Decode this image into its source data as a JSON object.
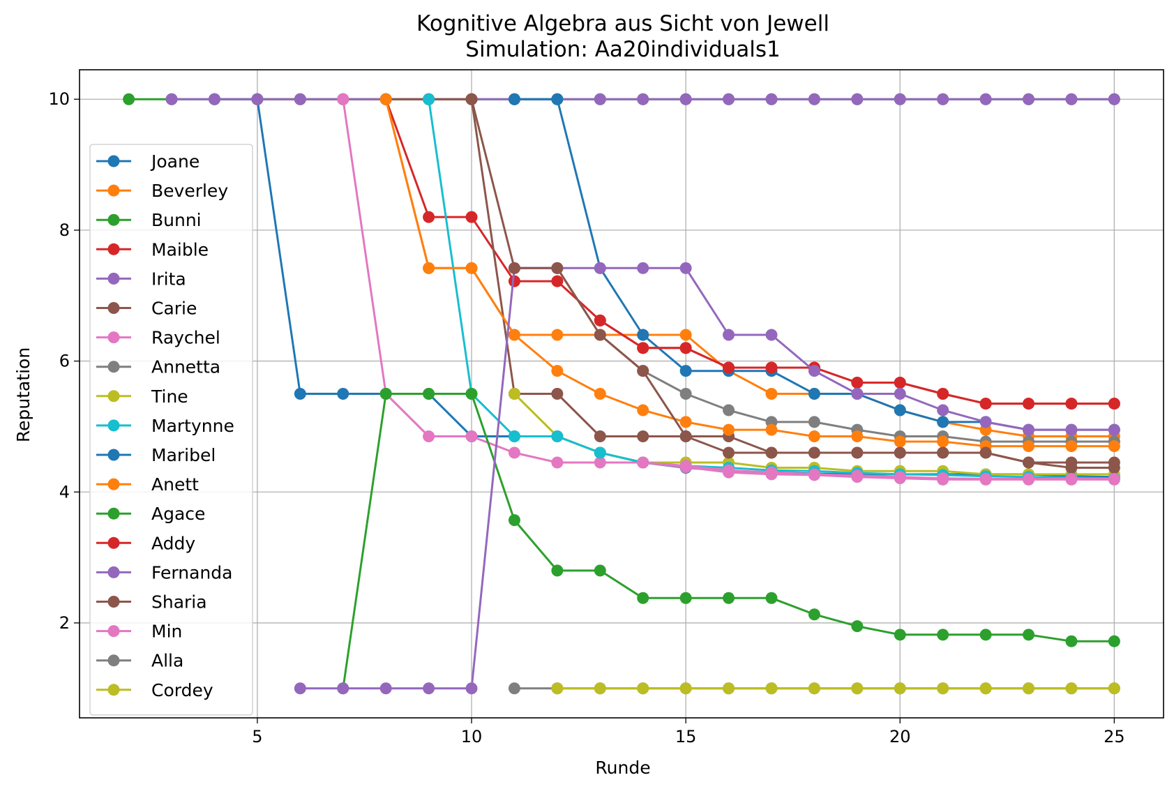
{
  "chart_data": {
    "type": "line",
    "title": "Kognitive Algebra aus Sicht von Jewell",
    "subtitle": "Simulation: Aa20individuals1",
    "xlabel": "Runde",
    "ylabel": "Reputation",
    "xlim": [
      0.85,
      26.15
    ],
    "ylim": [
      0.55,
      10.45
    ],
    "xticks": [
      5,
      10,
      15,
      20,
      25
    ],
    "yticks": [
      2,
      4,
      6,
      8,
      10
    ],
    "grid": true,
    "legend_position": "center-left",
    "series": [
      {
        "name": "Joane",
        "color": "#1f77b4",
        "x": [
          4,
          5,
          6,
          7,
          8,
          9,
          10,
          11,
          12,
          13,
          14,
          15,
          16,
          17,
          18,
          19,
          20,
          21,
          22,
          23,
          24,
          25
        ],
        "y": [
          10,
          10,
          5.5,
          5.5,
          5.5,
          5.5,
          4.85,
          4.85,
          4.85,
          4.6,
          4.45,
          4.37,
          4.32,
          4.3,
          4.28,
          4.27,
          4.27,
          4.27,
          4.27,
          4.27,
          4.24,
          4.23
        ]
      },
      {
        "name": "Beverley",
        "color": "#ff7f0e",
        "x": [
          5,
          6,
          7,
          8,
          9,
          10,
          11,
          12,
          13,
          14,
          15,
          16,
          17,
          18,
          19,
          20,
          21,
          22,
          23,
          24,
          25
        ],
        "y": [
          10,
          10,
          10,
          10,
          7.42,
          7.42,
          6.4,
          6.4,
          6.4,
          6.4,
          6.4,
          5.85,
          5.5,
          5.5,
          5.5,
          5.25,
          5.07,
          4.95,
          4.85,
          4.85,
          4.85
        ]
      },
      {
        "name": "Bunni",
        "color": "#2ca02c",
        "x": [
          2,
          3,
          4,
          5,
          6,
          7,
          8,
          9,
          10,
          11,
          12,
          13,
          14,
          15,
          16,
          17,
          18,
          19,
          20,
          21,
          22,
          23,
          24,
          25
        ],
        "y": [
          10,
          10,
          10,
          10,
          10,
          10,
          10,
          10,
          10,
          10,
          10,
          10,
          10,
          10,
          10,
          10,
          10,
          10,
          10,
          10,
          10,
          10,
          10,
          10
        ]
      },
      {
        "name": "Maible",
        "color": "#d62728",
        "x": [
          8,
          9,
          10,
          11,
          12,
          13,
          14,
          15,
          16,
          17,
          18,
          19,
          20,
          21,
          22,
          23,
          24,
          25
        ],
        "y": [
          10,
          8.2,
          8.2,
          7.22,
          7.22,
          6.62,
          6.2,
          6.2,
          5.9,
          5.9,
          5.9,
          5.67,
          5.67,
          5.5,
          5.35,
          5.35,
          5.35,
          5.35
        ]
      },
      {
        "name": "Irita",
        "color": "#9467bd",
        "x": [
          3,
          4,
          5,
          6,
          7,
          8,
          9,
          10,
          11,
          12,
          13,
          14,
          15,
          16,
          17,
          18,
          19,
          20,
          21,
          22,
          23,
          24,
          25
        ],
        "y": [
          10,
          10,
          10,
          10,
          10,
          10,
          10,
          10,
          10,
          10,
          10,
          10,
          10,
          10,
          10,
          10,
          10,
          10,
          10,
          10,
          10,
          10,
          10
        ]
      },
      {
        "name": "Carie",
        "color": "#8c564b",
        "x": [
          8,
          9,
          10,
          11,
          12,
          13,
          14,
          15,
          16,
          17,
          18,
          19,
          20,
          21,
          22,
          23,
          24,
          25
        ],
        "y": [
          10,
          10,
          10,
          5.5,
          5.5,
          4.85,
          4.85,
          4.85,
          4.85,
          4.6,
          4.6,
          4.6,
          4.6,
          4.6,
          4.6,
          4.45,
          4.45,
          4.45
        ]
      },
      {
        "name": "Raychel",
        "color": "#e377c2",
        "x": [
          7,
          8,
          9,
          10,
          11,
          12,
          13,
          14,
          15,
          16,
          17,
          18,
          19,
          20,
          21,
          22,
          23,
          24,
          25
        ],
        "y": [
          10,
          5.5,
          4.85,
          4.85,
          4.6,
          4.45,
          4.45,
          4.45,
          4.38,
          4.3,
          4.27,
          4.26,
          4.23,
          4.21,
          4.19,
          4.19,
          4.19,
          4.19,
          4.19
        ]
      },
      {
        "name": "Annetta",
        "color": "#7f7f7f",
        "x": [
          11,
          12,
          13,
          14,
          15,
          16,
          17,
          18,
          19,
          20,
          21,
          22,
          23,
          24,
          25
        ],
        "y": [
          7.42,
          7.42,
          6.4,
          5.85,
          5.5,
          5.25,
          5.07,
          5.07,
          4.95,
          4.85,
          4.85,
          4.77,
          4.77,
          4.77,
          4.77
        ]
      },
      {
        "name": "Tine",
        "color": "#bcbd22",
        "x": [
          11,
          12,
          13,
          14,
          15,
          16,
          17,
          18,
          19,
          20,
          21,
          22,
          23,
          24,
          25
        ],
        "y": [
          5.5,
          4.85,
          4.6,
          4.45,
          4.45,
          4.45,
          4.37,
          4.37,
          4.32,
          4.32,
          4.32,
          4.27,
          4.27,
          4.27,
          4.27
        ]
      },
      {
        "name": "Martynne",
        "color": "#17becf",
        "x": [
          9,
          10,
          11,
          12,
          13,
          14,
          15,
          16,
          17,
          18,
          19,
          20,
          21,
          22,
          23,
          24,
          25
        ],
        "y": [
          10,
          5.5,
          4.85,
          4.85,
          4.6,
          4.45,
          4.4,
          4.37,
          4.33,
          4.32,
          4.29,
          4.27,
          4.26,
          4.24,
          4.23,
          4.22,
          4.21
        ]
      },
      {
        "name": "Maribel",
        "color": "#1f77b4",
        "x": [
          11,
          12,
          13,
          14,
          15,
          16,
          17,
          18,
          19,
          20,
          21,
          22,
          23,
          24,
          25
        ],
        "y": [
          10,
          10,
          7.42,
          6.4,
          5.85,
          5.85,
          5.85,
          5.5,
          5.5,
          5.25,
          5.07,
          5.07,
          4.95,
          4.95,
          4.95
        ]
      },
      {
        "name": "Anett",
        "color": "#ff7f0e",
        "x": [
          8,
          9,
          10,
          11,
          12,
          13,
          14,
          15,
          16,
          17,
          18,
          19,
          20,
          21,
          22,
          23,
          24,
          25
        ],
        "y": [
          10,
          7.42,
          7.42,
          6.4,
          5.85,
          5.5,
          5.25,
          5.07,
          4.95,
          4.95,
          4.85,
          4.85,
          4.77,
          4.77,
          4.7,
          4.7,
          4.7,
          4.7
        ]
      },
      {
        "name": "Agace",
        "color": "#2ca02c",
        "x": [
          7,
          8,
          9,
          10,
          11,
          12,
          13,
          14,
          15,
          16,
          17,
          18,
          19,
          20,
          21,
          22,
          23,
          24,
          25
        ],
        "y": [
          1,
          5.5,
          5.5,
          5.5,
          3.57,
          2.8,
          2.8,
          2.38,
          2.38,
          2.38,
          2.38,
          2.13,
          1.95,
          1.82,
          1.82,
          1.82,
          1.82,
          1.72,
          1.72
        ]
      },
      {
        "name": "Addy",
        "color": "#d62728",
        "x": [
          13,
          14,
          15,
          16,
          17,
          18,
          19,
          20,
          21,
          22,
          23,
          24,
          25
        ],
        "y": [
          6.62,
          6.2,
          6.2,
          5.9,
          5.9,
          5.9,
          5.67,
          5.67,
          5.5,
          5.35,
          5.35,
          5.35,
          5.35
        ]
      },
      {
        "name": "Fernanda",
        "color": "#9467bd",
        "x": [
          6,
          7,
          8,
          9,
          10,
          11,
          12,
          13,
          14,
          15,
          16,
          17,
          18,
          19,
          20,
          21,
          22,
          23,
          24,
          25
        ],
        "y": [
          1,
          1,
          1,
          1,
          1,
          7.42,
          7.42,
          7.42,
          7.42,
          7.42,
          6.4,
          6.4,
          5.85,
          5.5,
          5.5,
          5.25,
          5.07,
          4.95,
          4.95,
          4.95
        ]
      },
      {
        "name": "Sharia",
        "color": "#8c564b",
        "x": [
          10,
          11,
          12,
          13,
          14,
          15,
          16,
          17,
          18,
          19,
          20,
          21,
          22,
          23,
          24,
          25
        ],
        "y": [
          10,
          7.42,
          7.42,
          6.4,
          5.85,
          4.85,
          4.6,
          4.6,
          4.6,
          4.6,
          4.6,
          4.6,
          4.6,
          4.45,
          4.37,
          4.37
        ]
      },
      {
        "name": "Min",
        "color": "#e377c2",
        "x": [
          14,
          15,
          16,
          17,
          18,
          19,
          20,
          21,
          22,
          23,
          24,
          25
        ],
        "y": [
          4.45,
          4.4,
          4.33,
          4.3,
          4.27,
          4.25,
          4.23,
          4.21,
          4.2,
          4.2,
          4.2,
          4.2
        ]
      },
      {
        "name": "Alla",
        "color": "#7f7f7f",
        "x": [
          11,
          12,
          13,
          14,
          15,
          16,
          17,
          18,
          19,
          20,
          21,
          22,
          23,
          24,
          25
        ],
        "y": [
          1,
          1,
          1,
          1,
          1,
          1,
          1,
          1,
          1,
          1,
          1,
          1,
          1,
          1,
          1
        ]
      },
      {
        "name": "Cordey",
        "color": "#bcbd22",
        "x": [
          12,
          13,
          14,
          15,
          16,
          17,
          18,
          19,
          20,
          21,
          22,
          23,
          24,
          25
        ],
        "y": [
          1,
          1,
          1,
          1,
          1,
          1,
          1,
          1,
          1,
          1,
          1,
          1,
          1,
          1
        ]
      }
    ]
  }
}
